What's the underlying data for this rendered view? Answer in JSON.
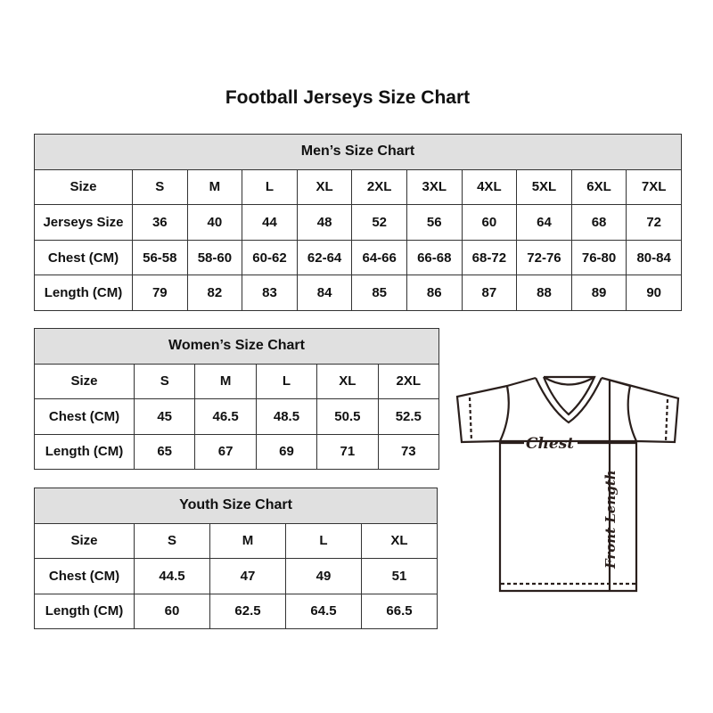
{
  "title": "Football Jerseys Size Chart",
  "men": {
    "heading": "Men’s Size Chart",
    "rows": [
      [
        "Size",
        "S",
        "M",
        "L",
        "XL",
        "2XL",
        "3XL",
        "4XL",
        "5XL",
        "6XL",
        "7XL"
      ],
      [
        "Jerseys Size",
        "36",
        "40",
        "44",
        "48",
        "52",
        "56",
        "60",
        "64",
        "68",
        "72"
      ],
      [
        "Chest (CM)",
        "56-58",
        "58-60",
        "60-62",
        "62-64",
        "64-66",
        "66-68",
        "68-72",
        "72-76",
        "76-80",
        "80-84"
      ],
      [
        "Length (CM)",
        "79",
        "82",
        "83",
        "84",
        "85",
        "86",
        "87",
        "88",
        "89",
        "90"
      ]
    ]
  },
  "women": {
    "heading": "Women’s Size Chart",
    "rows": [
      [
        "Size",
        "S",
        "M",
        "L",
        "XL",
        "2XL"
      ],
      [
        "Chest (CM)",
        "45",
        "46.5",
        "48.5",
        "50.5",
        "52.5"
      ],
      [
        "Length (CM)",
        "65",
        "67",
        "69",
        "71",
        "73"
      ]
    ]
  },
  "youth": {
    "heading": "Youth Size Chart",
    "rows": [
      [
        "Size",
        "S",
        "M",
        "L",
        "XL"
      ],
      [
        "Chest (CM)",
        "44.5",
        "47",
        "49",
        "51"
      ],
      [
        "Length (CM)",
        "60",
        "62.5",
        "64.5",
        "66.5"
      ]
    ]
  },
  "diagram": {
    "chest_label": "Chest",
    "length_label": "Front Length"
  }
}
